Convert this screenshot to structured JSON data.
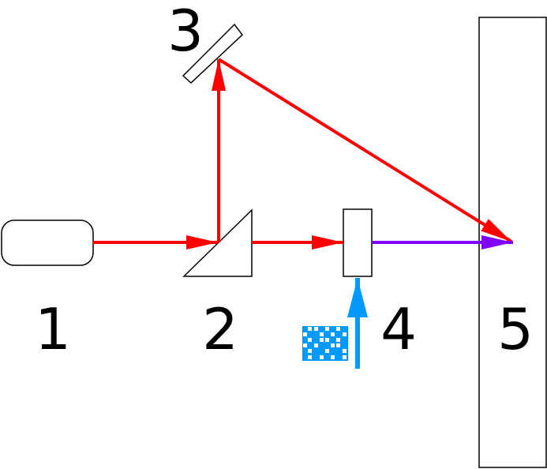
{
  "labels": {
    "l1": "1",
    "l2": "2",
    "l3": "3",
    "l4": "4",
    "l5": "5"
  },
  "colors": {
    "red_beam": "#ff0000",
    "purple_beam": "#7f00ff",
    "blue_beam": "#0099ff",
    "outline": "#000000"
  },
  "icons": {
    "pattern": "checker-pattern-icon"
  }
}
